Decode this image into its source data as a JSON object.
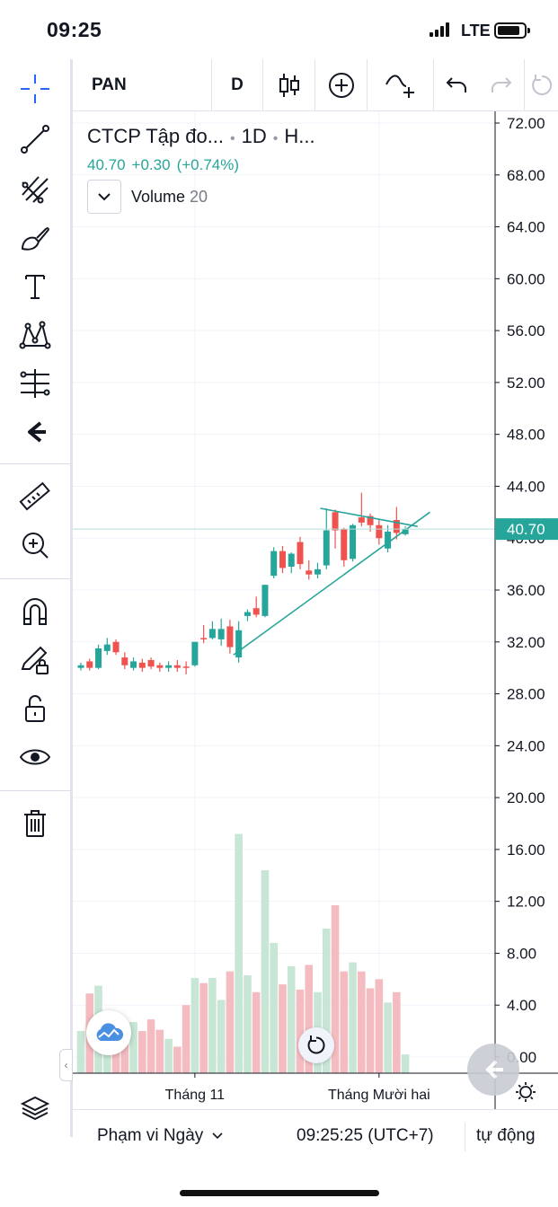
{
  "status_bar": {
    "time": "09:25",
    "network": "LTE"
  },
  "toolbar": {
    "symbol": "PAN",
    "interval": "D",
    "left_tools": [
      "crosshair-icon",
      "trend-line-icon",
      "pitchfork-icon",
      "brush-icon",
      "text-icon",
      "pattern-icon",
      "forecast-icon",
      "back-arrow-icon",
      "ruler-icon",
      "zoom-in-icon",
      "magnet-icon",
      "pencil-lock-icon",
      "unlock-icon",
      "eye-icon",
      "trash-icon",
      "layers-icon"
    ]
  },
  "legend": {
    "title": "CTCP Tập đo...",
    "interval": "1D",
    "exchange": "H...",
    "last": "40.70",
    "change": "+0.30",
    "change_pct": "(+0.74%)",
    "volume_label": "Volume",
    "volume_length": "20"
  },
  "bottom_bar": {
    "range_label": "Phạm vi Ngày",
    "clock": "09:25:25 (UTC+7)",
    "scale_mode": "tự động"
  },
  "colors": {
    "up": "#26a69a",
    "down": "#ef5350",
    "up_volume": "#c8e6d5",
    "down_volume": "#f4bcc0",
    "trendline": "#26a69a"
  },
  "chart_data": {
    "type": "candlestick",
    "y_axis": {
      "ticks": [
        72,
        68,
        64,
        60,
        56,
        52,
        48,
        44,
        40,
        36,
        32,
        28,
        24,
        20,
        16,
        12,
        8,
        4,
        0
      ],
      "tick_labels": [
        "72.00",
        "68.00",
        "64.00",
        "60.00",
        "56.00",
        "52.00",
        "48.00",
        "44.00",
        "40.00",
        "36.00",
        "32.00",
        "28.00",
        "24.00",
        "20.00",
        "16.00",
        "12.00",
        "8.00",
        "4.00",
        "0.00"
      ],
      "range": [
        -0.6,
        72.6
      ]
    },
    "last_price_label": "40.70",
    "x_labels": [
      {
        "label": "Tháng 11",
        "bar_index": 13
      },
      {
        "label": "Tháng Mười hai",
        "bar_index": 34
      }
    ],
    "candles": [
      {
        "o": 30.0,
        "h": 30.4,
        "l": 29.8,
        "c": 30.2
      },
      {
        "o": 30.5,
        "h": 30.7,
        "l": 29.8,
        "c": 30.0
      },
      {
        "o": 30.0,
        "h": 31.8,
        "l": 29.9,
        "c": 31.5
      },
      {
        "o": 31.3,
        "h": 32.3,
        "l": 31.0,
        "c": 31.8
      },
      {
        "o": 32.0,
        "h": 32.2,
        "l": 31.0,
        "c": 31.2
      },
      {
        "o": 30.8,
        "h": 31.2,
        "l": 29.9,
        "c": 30.2
      },
      {
        "o": 30.0,
        "h": 30.8,
        "l": 29.8,
        "c": 30.5
      },
      {
        "o": 30.4,
        "h": 30.7,
        "l": 29.7,
        "c": 30.0
      },
      {
        "o": 30.6,
        "h": 30.8,
        "l": 29.9,
        "c": 30.1
      },
      {
        "o": 30.2,
        "h": 30.4,
        "l": 29.7,
        "c": 30.0
      },
      {
        "o": 30.0,
        "h": 30.5,
        "l": 29.7,
        "c": 30.2
      },
      {
        "o": 30.2,
        "h": 30.6,
        "l": 29.7,
        "c": 30.0
      },
      {
        "o": 30.1,
        "h": 30.5,
        "l": 29.5,
        "c": 30.0
      },
      {
        "o": 30.2,
        "h": 32.0,
        "l": 30.1,
        "c": 32.0
      },
      {
        "o": 32.3,
        "h": 33.3,
        "l": 31.9,
        "c": 32.2
      },
      {
        "o": 32.3,
        "h": 33.6,
        "l": 32.2,
        "c": 33.0
      },
      {
        "o": 32.2,
        "h": 33.8,
        "l": 31.7,
        "c": 33.0
      },
      {
        "o": 33.2,
        "h": 33.7,
        "l": 31.1,
        "c": 31.6
      },
      {
        "o": 30.8,
        "h": 33.6,
        "l": 30.4,
        "c": 32.9
      },
      {
        "o": 34.0,
        "h": 34.5,
        "l": 33.6,
        "c": 34.3
      },
      {
        "o": 34.6,
        "h": 35.5,
        "l": 33.9,
        "c": 34.1
      },
      {
        "o": 34.0,
        "h": 36.4,
        "l": 33.9,
        "c": 36.4
      },
      {
        "o": 37.1,
        "h": 39.3,
        "l": 36.9,
        "c": 39.0
      },
      {
        "o": 39.0,
        "h": 39.4,
        "l": 37.3,
        "c": 37.7
      },
      {
        "o": 37.8,
        "h": 38.9,
        "l": 37.3,
        "c": 38.8
      },
      {
        "o": 39.7,
        "h": 40.1,
        "l": 37.6,
        "c": 38.0
      },
      {
        "o": 37.5,
        "h": 38.3,
        "l": 36.8,
        "c": 37.2
      },
      {
        "o": 37.2,
        "h": 38.1,
        "l": 36.9,
        "c": 37.6
      },
      {
        "o": 37.9,
        "h": 42.3,
        "l": 37.6,
        "c": 40.6
      },
      {
        "o": 42.0,
        "h": 42.2,
        "l": 39.2,
        "c": 40.6
      },
      {
        "o": 40.7,
        "h": 40.8,
        "l": 37.8,
        "c": 38.3
      },
      {
        "o": 38.4,
        "h": 41.1,
        "l": 38.2,
        "c": 41.0
      },
      {
        "o": 41.6,
        "h": 43.5,
        "l": 40.9,
        "c": 41.2
      },
      {
        "o": 41.7,
        "h": 41.9,
        "l": 40.5,
        "c": 41.0
      },
      {
        "o": 41.0,
        "h": 41.5,
        "l": 39.5,
        "c": 40.0
      },
      {
        "o": 39.2,
        "h": 41.0,
        "l": 38.9,
        "c": 40.5
      },
      {
        "o": 41.4,
        "h": 42.4,
        "l": 39.9,
        "c": 40.4
      },
      {
        "o": 40.3,
        "h": 40.9,
        "l": 40.2,
        "c": 40.7
      }
    ],
    "volumes": [
      2.0,
      4.9,
      5.5,
      2.1,
      2.8,
      2.2,
      2.7,
      2.0,
      2.9,
      2.1,
      1.4,
      0.8,
      4.0,
      6.1,
      5.7,
      6.1,
      4.4,
      6.6,
      17.2,
      6.3,
      5.0,
      14.4,
      8.8,
      5.6,
      7.0,
      5.2,
      7.1,
      5.0,
      9.9,
      11.7,
      6.6,
      7.3,
      6.6,
      5.3,
      6.0,
      4.2,
      5.0,
      0.2
    ],
    "trendlines": [
      {
        "from": {
          "bar": 17.4,
          "price": 31.0
        },
        "to": {
          "bar": 39.8,
          "price": 42.0
        }
      },
      {
        "from": {
          "bar": 27.3,
          "price": 42.3
        },
        "to": {
          "bar": 38.4,
          "price": 40.9
        }
      }
    ],
    "last_price_line": 40.7
  }
}
